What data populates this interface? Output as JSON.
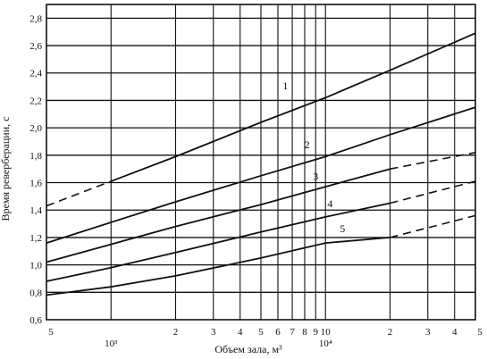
{
  "chart_data": {
    "type": "line",
    "title": "",
    "xlabel": "Объем зала, м³",
    "ylabel": "Время реверберации, с",
    "x_scale": "log",
    "xlim": [
      500,
      50000
    ],
    "ylim": [
      0.6,
      2.9
    ],
    "grid": true,
    "x_major_ticks": [
      {
        "value": 500,
        "label": "5"
      },
      {
        "value": 1000,
        "label": "10³"
      },
      {
        "value": 2000,
        "label": "2"
      },
      {
        "value": 3000,
        "label": "3"
      },
      {
        "value": 4000,
        "label": "4"
      },
      {
        "value": 5000,
        "label": "5"
      },
      {
        "value": 6000,
        "label": "6"
      },
      {
        "value": 7000,
        "label": "7"
      },
      {
        "value": 8000,
        "label": "8"
      },
      {
        "value": 9000,
        "label": "9"
      },
      {
        "value": 10000,
        "label": "10"
      },
      {
        "value": 10000,
        "label": "10⁴"
      },
      {
        "value": 20000,
        "label": "2"
      },
      {
        "value": 30000,
        "label": "3"
      },
      {
        "value": 40000,
        "label": "4"
      },
      {
        "value": 50000,
        "label": "5"
      }
    ],
    "y_ticks": [
      {
        "value": 0.6,
        "label": "0,6"
      },
      {
        "value": 0.8,
        "label": "0,8"
      },
      {
        "value": 1.0,
        "label": "1,0"
      },
      {
        "value": 1.2,
        "label": "1,2"
      },
      {
        "value": 1.4,
        "label": "1,4"
      },
      {
        "value": 1.6,
        "label": "1,6"
      },
      {
        "value": 1.8,
        "label": "1,8"
      },
      {
        "value": 2.0,
        "label": "2,0"
      },
      {
        "value": 2.2,
        "label": "2,2"
      },
      {
        "value": 2.4,
        "label": "2,4"
      },
      {
        "value": 2.6,
        "label": "2,6"
      },
      {
        "value": 2.8,
        "label": "2,8"
      }
    ],
    "series": [
      {
        "name": "1",
        "solid": [
          [
            1000,
            1.61
          ],
          [
            2000,
            1.79
          ],
          [
            5000,
            2.04
          ],
          [
            10000,
            2.22
          ],
          [
            20000,
            2.42
          ],
          [
            50000,
            2.69
          ]
        ],
        "dashed": [
          [
            500,
            1.43
          ],
          [
            1000,
            1.61
          ]
        ]
      },
      {
        "name": "2",
        "solid": [
          [
            500,
            1.16
          ],
          [
            1000,
            1.31
          ],
          [
            2000,
            1.46
          ],
          [
            5000,
            1.65
          ],
          [
            10000,
            1.79
          ],
          [
            20000,
            1.95
          ],
          [
            50000,
            2.15
          ]
        ],
        "dashed": []
      },
      {
        "name": "3",
        "solid": [
          [
            500,
            1.02
          ],
          [
            1000,
            1.15
          ],
          [
            2000,
            1.28
          ],
          [
            5000,
            1.44
          ],
          [
            10000,
            1.57
          ],
          [
            20000,
            1.7
          ]
        ],
        "dashed": [
          [
            20000,
            1.7
          ],
          [
            50000,
            1.82
          ]
        ]
      },
      {
        "name": "4",
        "solid": [
          [
            500,
            0.88
          ],
          [
            1000,
            0.98
          ],
          [
            2000,
            1.09
          ],
          [
            5000,
            1.24
          ],
          [
            10000,
            1.35
          ],
          [
            20000,
            1.45
          ]
        ],
        "dashed": [
          [
            20000,
            1.45
          ],
          [
            50000,
            1.61
          ]
        ]
      },
      {
        "name": "5",
        "solid": [
          [
            500,
            0.78
          ],
          [
            1000,
            0.84
          ],
          [
            2000,
            0.92
          ],
          [
            5000,
            1.05
          ],
          [
            10000,
            1.16
          ],
          [
            20000,
            1.2
          ]
        ],
        "dashed": [
          [
            20000,
            1.2
          ],
          [
            50000,
            1.36
          ]
        ]
      }
    ]
  }
}
